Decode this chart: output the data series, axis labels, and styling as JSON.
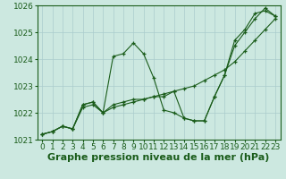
{
  "xlabel": "Graphe pression niveau de la mer (hPa)",
  "xlim": [
    -0.5,
    23.5
  ],
  "ylim": [
    1021.0,
    1026.0
  ],
  "yticks": [
    1021,
    1022,
    1023,
    1024,
    1025,
    1026
  ],
  "xticks": [
    0,
    1,
    2,
    3,
    4,
    5,
    6,
    7,
    8,
    9,
    10,
    11,
    12,
    13,
    14,
    15,
    16,
    17,
    18,
    19,
    20,
    21,
    22,
    23
  ],
  "background_color": "#cce8e0",
  "grid_color": "#aacccc",
  "line_color": "#1a5c1a",
  "series1": {
    "x": [
      0,
      1,
      2,
      3,
      4,
      5,
      6,
      7,
      8,
      9,
      10,
      11,
      12,
      13,
      14,
      15,
      16,
      17,
      18,
      19,
      20,
      21,
      22,
      23
    ],
    "y": [
      1021.2,
      1021.3,
      1021.5,
      1021.4,
      1022.3,
      1022.4,
      1022.0,
      1024.1,
      1024.2,
      1024.6,
      1024.2,
      1023.3,
      1022.1,
      1022.0,
      1021.8,
      1021.7,
      1021.7,
      1022.6,
      1023.4,
      1024.7,
      1025.1,
      1025.7,
      1025.8,
      1025.6
    ]
  },
  "series2": {
    "x": [
      0,
      1,
      2,
      3,
      4,
      5,
      6,
      7,
      8,
      9,
      10,
      11,
      12,
      13,
      14,
      15,
      16,
      17,
      18,
      19,
      20,
      21,
      22,
      23
    ],
    "y": [
      1021.2,
      1021.3,
      1021.5,
      1021.4,
      1022.3,
      1022.4,
      1022.0,
      1022.3,
      1022.4,
      1022.5,
      1022.5,
      1022.6,
      1022.6,
      1022.8,
      1021.8,
      1021.7,
      1021.7,
      1022.6,
      1023.4,
      1024.5,
      1025.0,
      1025.5,
      1025.9,
      1025.6
    ]
  },
  "series3": {
    "x": [
      0,
      1,
      2,
      3,
      4,
      5,
      6,
      7,
      8,
      9,
      10,
      11,
      12,
      13,
      14,
      15,
      16,
      17,
      18,
      19,
      20,
      21,
      22,
      23
    ],
    "y": [
      1021.2,
      1021.3,
      1021.5,
      1021.4,
      1022.2,
      1022.3,
      1022.0,
      1022.2,
      1022.3,
      1022.4,
      1022.5,
      1022.6,
      1022.7,
      1022.8,
      1022.9,
      1023.0,
      1023.2,
      1023.4,
      1023.6,
      1023.9,
      1024.3,
      1024.7,
      1025.1,
      1025.5
    ]
  },
  "font_color": "#1a5c1a",
  "xlabel_fontsize": 8,
  "tick_fontsize": 6.5
}
